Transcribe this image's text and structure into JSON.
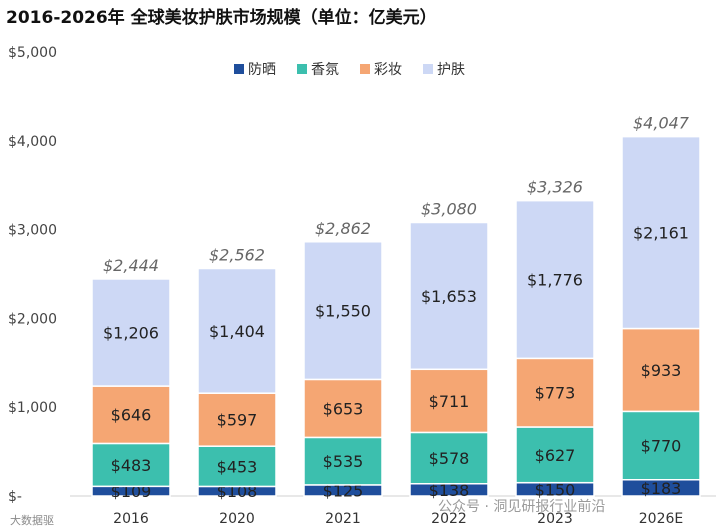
{
  "chart_data": {
    "type": "bar",
    "stacked": true,
    "title": "2016-2026年 全球美妆护肤市场规模（单位：亿美元）",
    "categories": [
      "2016",
      "2020",
      "2021",
      "2022",
      "2023",
      "2026E"
    ],
    "series": [
      {
        "name": "防晒",
        "color": "#1f4e9c",
        "values": [
          109,
          108,
          125,
          138,
          150,
          183
        ],
        "labels": [
          "$109",
          "$108",
          "$125",
          "$138",
          "$150",
          "$183"
        ]
      },
      {
        "name": "香氛",
        "color": "#3cbfae",
        "values": [
          483,
          453,
          535,
          578,
          627,
          770
        ],
        "labels": [
          "$483",
          "$453",
          "$535",
          "$578",
          "$627",
          "$770"
        ]
      },
      {
        "name": "彩妆",
        "color": "#f5a673",
        "values": [
          646,
          597,
          653,
          711,
          773,
          933
        ],
        "labels": [
          "$646",
          "$597",
          "$653",
          "$711",
          "$773",
          "$933"
        ]
      },
      {
        "name": "护肤",
        "color": "#cdd8f5",
        "values": [
          1206,
          1404,
          1550,
          1653,
          1776,
          2161
        ],
        "labels": [
          "$1,206",
          "$1,404",
          "$1,550",
          "$1,653",
          "$1,776",
          "$2,161"
        ]
      }
    ],
    "totals": [
      2444,
      2562,
      2862,
      3080,
      3326,
      4047
    ],
    "total_labels": [
      "$2,444",
      "$2,562",
      "$2,862",
      "$3,080",
      "$3,326",
      "$4,047"
    ],
    "ylim": [
      0,
      5000
    ],
    "yticks": [
      0,
      1000,
      2000,
      3000,
      4000,
      5000
    ],
    "ytick_labels": [
      "$-",
      "$1,000",
      "$2,000",
      "$3,000",
      "$4,000",
      "$5,000"
    ],
    "xlabel": "",
    "ylabel": "",
    "legend_position": "top-center",
    "grid": false
  },
  "watermark": "公众号 · 洞见研报行业前沿",
  "watermark2": "大数据驱"
}
